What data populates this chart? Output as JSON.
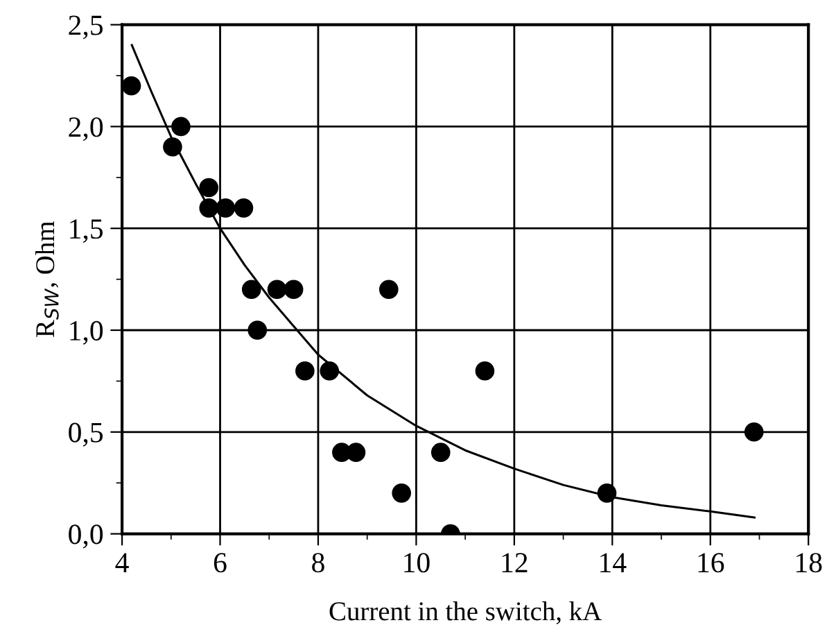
{
  "chart_data": {
    "type": "scatter",
    "xlabel": "Current in the switch, kA",
    "ylabel": "R$_{SW}$, Ohm",
    "xlim": [
      4,
      18
    ],
    "ylim": [
      0,
      2.5
    ],
    "xticks": [
      4,
      {
        "value": 5,
        "label": null
      },
      6,
      {
        "value": 7,
        "label": null
      },
      8,
      {
        "value": 9,
        "label": null
      },
      10,
      {
        "value": 11,
        "label": null
      },
      12,
      {
        "value": 13,
        "label": null
      },
      14,
      {
        "value": 15,
        "label": null
      },
      16,
      {
        "value": 17,
        "label": null
      },
      18
    ],
    "yticks": [
      {
        "value": 0,
        "label": "0,0"
      },
      {
        "value": 0.25,
        "label": null
      },
      {
        "value": 0.5,
        "label": "0,5"
      },
      {
        "value": 0.75,
        "label": null
      },
      {
        "value": 1.0,
        "label": "1,0"
      },
      {
        "value": 1.25,
        "label": null
      },
      {
        "value": 1.5,
        "label": "1,5"
      },
      {
        "value": 1.75,
        "label": null
      },
      {
        "value": 2.0,
        "label": "2,0"
      },
      {
        "value": 2.25,
        "label": null
      },
      {
        "value": 2.5,
        "label": "2,5"
      }
    ],
    "grid": true,
    "legend": false,
    "series": [
      {
        "color": "#000000",
        "marker": "circle",
        "x": [
          4.19,
          5.03,
          5.2,
          5.77,
          5.77,
          6.11,
          6.48,
          6.64,
          6.76,
          7.16,
          7.5,
          7.73,
          8.23,
          8.48,
          8.77,
          9.44,
          9.7,
          10.5,
          10.7,
          11.4,
          13.89,
          16.89
        ],
        "values": [
          2.2,
          1.9,
          2.0,
          1.7,
          1.6,
          1.6,
          1.6,
          1.2,
          1.0,
          1.2,
          1.2,
          0.8,
          0.8,
          0.4,
          0.4,
          1.2,
          0.2,
          0.4,
          0.0,
          0.8,
          0.2,
          0.5
        ]
      },
      {
        "type": "line",
        "color": "#000000",
        "marker": "none",
        "line_style": "solid",
        "x": [
          4.2,
          4.6,
          5,
          5.5,
          6,
          6.5,
          7,
          7.5,
          8,
          9,
          10,
          11,
          12,
          13,
          14,
          15,
          16,
          16.9
        ],
        "values": [
          2.4,
          2.17,
          1.95,
          1.72,
          1.5,
          1.32,
          1.16,
          1.02,
          0.88,
          0.68,
          0.53,
          0.41,
          0.32,
          0.24,
          0.18,
          0.14,
          0.11,
          0.08
        ]
      }
    ]
  }
}
